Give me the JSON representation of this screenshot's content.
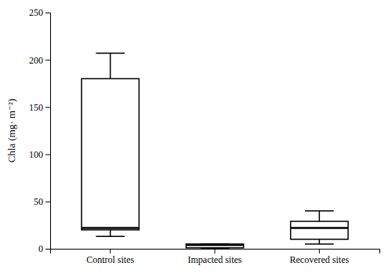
{
  "chart_data": {
    "type": "box",
    "categories": [
      "Control sites",
      "Impacted sites",
      "Recovered sites"
    ],
    "values": [
      {
        "whislo": 13,
        "q1": 20,
        "med": 22,
        "q3": 180,
        "whishi": 207
      },
      {
        "whislo": 0,
        "q1": 1,
        "med": 4,
        "q3": 5,
        "whishi": 5
      },
      {
        "whislo": 5,
        "q1": 10,
        "med": 22,
        "q3": 29,
        "whishi": 40
      }
    ],
    "ylabel": "Chla (mg· m⁻²)",
    "ylim": [
      0,
      250
    ],
    "yticks": [
      0,
      50,
      100,
      150,
      200,
      250
    ],
    "color": "#000000",
    "grid": false
  }
}
